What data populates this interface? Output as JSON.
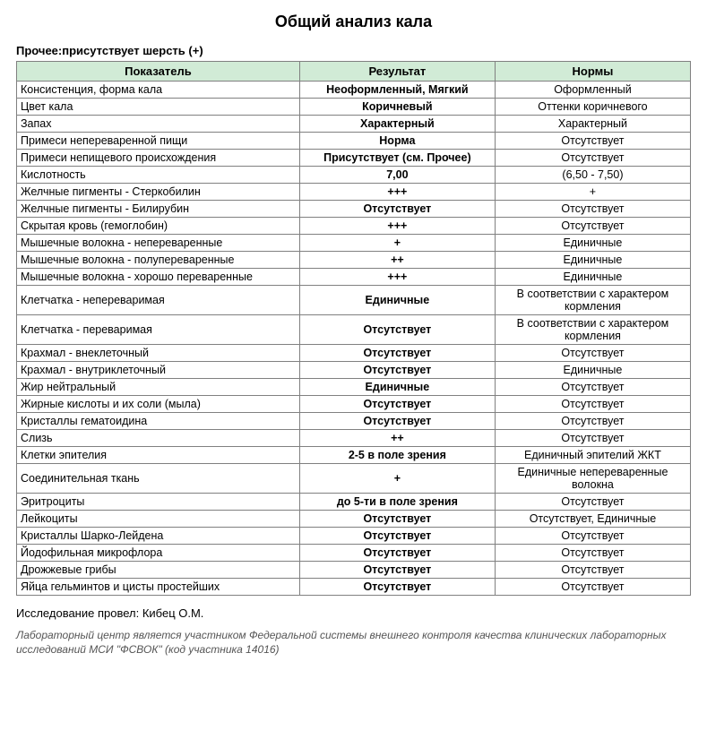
{
  "title": "Общий анализ кала",
  "subtitle": "Прочее:присутствует шерсть (+)",
  "table": {
    "headers": [
      "Показатель",
      "Результат",
      "Нормы"
    ],
    "header_bg": "#d1ebd6",
    "border_color": "#808080",
    "rows": [
      {
        "param": "Консистенция, форма кала",
        "result": "Неоформленный, Мягкий",
        "norm": "Оформленный"
      },
      {
        "param": "Цвет кала",
        "result": "Коричневый",
        "norm": "Оттенки коричневого"
      },
      {
        "param": "Запах",
        "result": "Характерный",
        "norm": "Характерный"
      },
      {
        "param": "Примеси непереваренной пищи",
        "result": "Норма",
        "norm": "Отсутствует"
      },
      {
        "param": "Примеси непищевого происхождения",
        "result": "Присутствует (см. Прочее)",
        "norm": "Отсутствует"
      },
      {
        "param": "Кислотность",
        "result": "7,00",
        "norm": "(6,50 - 7,50)"
      },
      {
        "param": "Желчные пигменты - Стеркобилин",
        "result": "+++",
        "norm": "+"
      },
      {
        "param": "Желчные пигменты - Билирубин",
        "result": "Отсутствует",
        "norm": "Отсутствует"
      },
      {
        "param": "Скрытая кровь (гемоглобин)",
        "result": "+++",
        "norm": "Отсутствует"
      },
      {
        "param": "Мышечные волокна - непереваренные",
        "result": "+",
        "norm": "Единичные"
      },
      {
        "param": "Мышечные волокна - полупереваренные",
        "result": "++",
        "norm": "Единичные"
      },
      {
        "param": "Мышечные волокна - хорошо переваренные",
        "result": "+++",
        "norm": "Единичные"
      },
      {
        "param": "Клетчатка - непереваримая",
        "result": "Единичные",
        "norm": "В соответствии с характером кормления"
      },
      {
        "param": "Клетчатка - переваримая",
        "result": "Отсутствует",
        "norm": "В соответствии с характером кормления"
      },
      {
        "param": "Крахмал - внеклеточный",
        "result": "Отсутствует",
        "norm": "Отсутствует"
      },
      {
        "param": "Крахмал - внутриклеточный",
        "result": "Отсутствует",
        "norm": "Единичные"
      },
      {
        "param": "Жир нейтральный",
        "result": "Единичные",
        "norm": "Отсутствует"
      },
      {
        "param": "Жирные кислоты и их соли (мыла)",
        "result": "Отсутствует",
        "norm": "Отсутствует"
      },
      {
        "param": "Кристаллы гематоидина",
        "result": "Отсутствует",
        "norm": "Отсутствует"
      },
      {
        "param": "Слизь",
        "result": "++",
        "norm": "Отсутствует"
      },
      {
        "param": "Клетки эпителия",
        "result": "2-5 в поле зрения",
        "norm": "Единичный эпителий ЖКТ"
      },
      {
        "param": "Соединительная ткань",
        "result": "+",
        "norm": "Единичные непереваренные волокна"
      },
      {
        "param": "Эритроциты",
        "result": "до 5-ти в поле зрения",
        "norm": "Отсутствует"
      },
      {
        "param": "Лейкоциты",
        "result": "Отсутствует",
        "norm": "Отсутствует, Единичные"
      },
      {
        "param": "Кристаллы Шарко-Лейдена",
        "result": "Отсутствует",
        "norm": "Отсутствует"
      },
      {
        "param": "Йодофильная микрофлора",
        "result": "Отсутствует",
        "norm": "Отсутствует"
      },
      {
        "param": "Дрожжевые грибы",
        "result": "Отсутствует",
        "norm": "Отсутствует"
      },
      {
        "param": "Яйца гельминтов и цисты простейших",
        "result": "Отсутствует",
        "norm": "Отсутствует"
      }
    ]
  },
  "footer": {
    "conducted_by": "Исследование провел: Кибец О.М.",
    "disclaimer": "Лабораторный центр является участником Федеральной системы внешнего контроля качества клинических лабораторных исследований МСИ \"ФСВОК\" (код участника 14016)"
  }
}
